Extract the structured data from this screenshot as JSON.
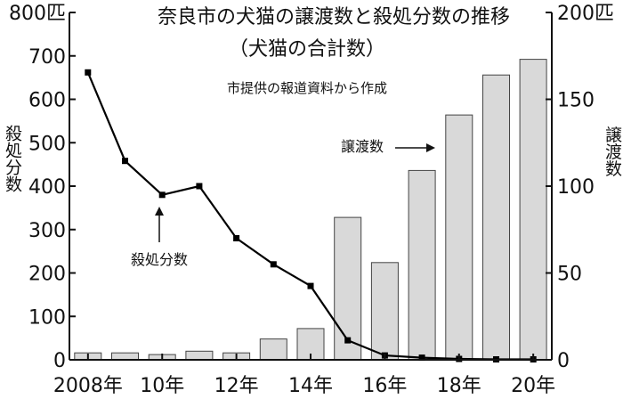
{
  "chart_data": {
    "type": "bar+line",
    "title": "奈良市の犬猫の譲渡数と殺処分数の推移",
    "subtitle": "（犬猫の合計数）",
    "source_note": "市提供の報道資料から作成",
    "x": [
      2008,
      2009,
      2010,
      2011,
      2012,
      2013,
      2014,
      2015,
      2016,
      2017,
      2018,
      2019,
      2020
    ],
    "x_tick_labels": [
      {
        "x": 2008,
        "label": "2008年"
      },
      {
        "x": 2010,
        "label": "10年"
      },
      {
        "x": 2012,
        "label": "12年"
      },
      {
        "x": 2014,
        "label": "14年"
      },
      {
        "x": 2016,
        "label": "16年"
      },
      {
        "x": 2018,
        "label": "18年"
      },
      {
        "x": 2020,
        "label": "20年"
      }
    ],
    "left_axis": {
      "label": "殺処分数",
      "ylim": [
        0,
        800
      ],
      "ticks": [
        0,
        100,
        200,
        300,
        400,
        500,
        600,
        700,
        800
      ],
      "tick_labels": [
        "0",
        "100",
        "200",
        "300",
        "400",
        "500",
        "600",
        "700",
        "800匹"
      ]
    },
    "right_axis": {
      "label": "譲渡数",
      "ylim": [
        0,
        200
      ],
      "ticks": [
        0,
        50,
        100,
        150,
        200
      ],
      "tick_labels": [
        "0",
        "50",
        "100",
        "150",
        "200匹"
      ]
    },
    "series": [
      {
        "name": "譲渡数",
        "type": "bar",
        "axis": "right",
        "color": "#d9d9d9",
        "values": [
          4,
          4,
          3,
          5,
          4,
          12,
          18,
          82,
          56,
          109,
          141,
          164,
          173
        ]
      },
      {
        "name": "殺処分数",
        "type": "line",
        "axis": "left",
        "color": "#000000",
        "values": [
          662,
          458,
          380,
          400,
          280,
          220,
          170,
          45,
          10,
          5,
          2,
          1,
          1
        ]
      }
    ],
    "annotations": [
      {
        "text": "殺処分数",
        "points_to": "line"
      },
      {
        "text": "譲渡数",
        "points_to": "bars"
      }
    ]
  }
}
